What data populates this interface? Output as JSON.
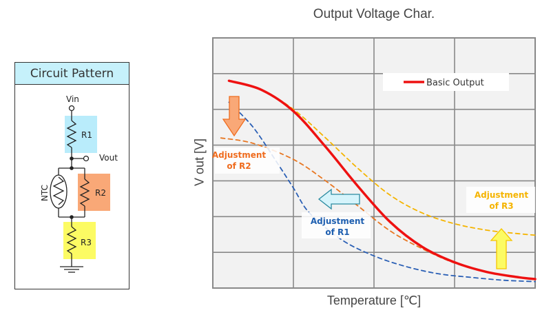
{
  "circuit": {
    "title": "Circuit Pattern",
    "labels": {
      "vin": "Vin",
      "vout": "Vout",
      "r1": "R1",
      "r2": "R2",
      "r3": "R3",
      "ntc": "NTC"
    },
    "colors": {
      "title_bg": "#c6f1fb",
      "r1_bg": "#b9ecfb",
      "r2_bg": "#f9a877",
      "r3_bg": "#fcfb63"
    }
  },
  "chart_data": {
    "type": "line",
    "title": "Output Voltage Char.",
    "xlabel": "Temperature [℃]",
    "ylabel": "V out [V]",
    "grid": true,
    "grid_columns": 4,
    "grid_rows": 7,
    "xlim": [
      0,
      4
    ],
    "ylim": [
      0,
      7
    ],
    "legend": {
      "entries": [
        {
          "name": "Basic Output",
          "color": "#ee1111"
        }
      ],
      "placement": "top-right"
    },
    "series": [
      {
        "name": "Basic Output",
        "style": "solid",
        "color": "#ee1111",
        "x": [
          0.2,
          0.6,
          1.0,
          1.4,
          1.8,
          2.2,
          2.6,
          3.0,
          3.4,
          3.8,
          4.0
        ],
        "y": [
          5.8,
          5.55,
          4.95,
          3.95,
          2.85,
          1.85,
          1.15,
          0.72,
          0.45,
          0.3,
          0.25
        ]
      },
      {
        "name": "Adjustment of R3",
        "style": "dashed",
        "color": "#f5b400",
        "x": [
          0.2,
          0.6,
          1.0,
          1.4,
          1.8,
          2.2,
          2.6,
          3.0,
          3.4,
          3.8,
          4.0
        ],
        "y": [
          5.8,
          5.55,
          5.0,
          4.2,
          3.35,
          2.6,
          2.1,
          1.8,
          1.62,
          1.52,
          1.48
        ]
      },
      {
        "name": "Adjustment of R2",
        "style": "dashed",
        "color": "#e87722",
        "x": [
          0.1,
          0.5,
          1.0,
          1.4,
          1.8,
          2.2,
          2.6,
          3.0,
          3.4,
          3.8,
          4.0
        ],
        "y": [
          4.2,
          4.05,
          3.6,
          3.0,
          2.3,
          1.6,
          1.1,
          0.7,
          0.45,
          0.3,
          0.25
        ]
      },
      {
        "name": "Adjustment of R1",
        "style": "dashed",
        "color": "#2a5fb5",
        "x": [
          0.2,
          0.5,
          0.8,
          1.0,
          1.2,
          1.6,
          2.0,
          2.4,
          2.8,
          3.2,
          3.6,
          4.0
        ],
        "y": [
          5.2,
          4.5,
          3.5,
          2.8,
          2.1,
          1.35,
          0.9,
          0.6,
          0.4,
          0.3,
          0.22,
          0.18
        ]
      }
    ],
    "annotations": [
      {
        "text_line1": "Adjustment",
        "text_line2": "of R2",
        "color": "#ef6c1e",
        "arrow": "down",
        "arrow_fill": "#f9a877",
        "arrow_stroke": "#ef6c1e"
      },
      {
        "text_line1": "Adjustment",
        "text_line2": "of R1",
        "color": "#1e5fb0",
        "arrow": "left",
        "arrow_fill": "#d6f4fb",
        "arrow_stroke": "#2a8aa0"
      },
      {
        "text_line1": "Adjustment",
        "text_line2": "of R3",
        "color": "#f5b400",
        "arrow": "up",
        "arrow_fill": "#fcfb63",
        "arrow_stroke": "#f5c400"
      }
    ]
  }
}
